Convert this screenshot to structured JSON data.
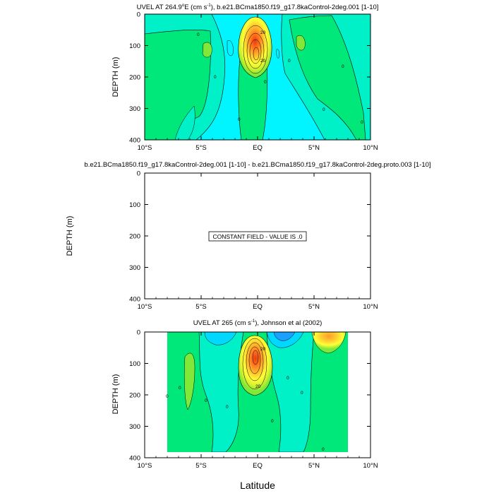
{
  "page": {
    "xlabel": "Latitude"
  },
  "panels": {
    "top": {
      "title_a": "UVEL AT 264.9",
      "title_deg": "o",
      "title_b": "E (cm s",
      "title_exp": "-1",
      "title_c": "), b.e21.BCma1850.f19_g17.8kaControl-2deg.001 [1-10]",
      "ylabel": "DEPTH (m)",
      "contour_labels": [
        "0",
        "20",
        "20",
        "0",
        "0",
        "0",
        "0",
        "0",
        "0",
        "0"
      ]
    },
    "middle": {
      "title": "b.e21.BCma1850.f19_g17.8kaControl-2deg.001 [1-10] - b.e21.BCma1850.f19_g17.8kaControl-2deg.proto.003 [1-10]",
      "ylabel": "DEPTH (m)",
      "message": "CONSTANT FIELD - VALUE IS .0"
    },
    "bottom": {
      "title_a": "UVEL AT 265 (cm s",
      "title_exp": "-1",
      "title_b": "), Johnson et al (2002)",
      "ylabel": "DEPTH (m)",
      "contour_labels": [
        "20",
        "20",
        "0",
        "0",
        "0",
        "0",
        "0",
        "0",
        "0",
        "0"
      ]
    }
  },
  "chart_data": [
    {
      "type": "heatmap",
      "subtype": "filled-contour",
      "panel": "top",
      "x_ticks": [
        "10°S",
        "5°S",
        "EQ",
        "5°N",
        "10°N"
      ],
      "x_tick_values": [
        -10,
        -5,
        0,
        5,
        10
      ],
      "y_ticks": [
        "0",
        "100",
        "200",
        "300",
        "400"
      ],
      "y_tick_values": [
        0,
        100,
        200,
        300,
        400
      ],
      "xlim": [
        -10,
        10
      ],
      "ylim": [
        400,
        0
      ],
      "colors": [
        "#00f5ff",
        "#00f0c8",
        "#00e87a",
        "#7fe838",
        "#d8f230",
        "#ffff36",
        "#ffcf30",
        "#ff9c2a",
        "#ff6a1a",
        "#e83a12"
      ],
      "core": {
        "lat": -0.1,
        "depth": 70,
        "max_speed_label": "20"
      }
    },
    {
      "type": "heatmap",
      "subtype": "constant",
      "panel": "middle",
      "x_ticks": [
        "10°S",
        "5°S",
        "EQ",
        "5°N",
        "10°N"
      ],
      "x_tick_values": [
        -10,
        -5,
        0,
        5,
        10
      ],
      "y_ticks": [
        "0",
        "100",
        "200",
        "300",
        "400"
      ],
      "y_tick_values": [
        0,
        100,
        200,
        300,
        400
      ],
      "xlim": [
        -10,
        10
      ],
      "ylim": [
        400,
        0
      ],
      "value": 0
    },
    {
      "type": "heatmap",
      "subtype": "filled-contour",
      "panel": "bottom",
      "x_ticks": [
        "10°S",
        "5°S",
        "EQ",
        "5°N",
        "10°N"
      ],
      "x_tick_values": [
        -10,
        -5,
        0,
        5,
        10
      ],
      "y_ticks": [
        "0",
        "100",
        "200",
        "300",
        "400"
      ],
      "y_tick_values": [
        0,
        100,
        200,
        300,
        400
      ],
      "xlim": [
        -10,
        10
      ],
      "ylim": [
        400,
        0
      ],
      "data_lat_range": [
        -8,
        8
      ],
      "colors": [
        "#1aa0ff",
        "#00d8ff",
        "#00f0c8",
        "#00e87a",
        "#7fe838",
        "#ffff36",
        "#ffcf30",
        "#ff9c2a",
        "#ff6a1a",
        "#e83a12"
      ],
      "core": {
        "lat": -0.1,
        "depth": 80,
        "max_speed_label": "20"
      }
    }
  ]
}
